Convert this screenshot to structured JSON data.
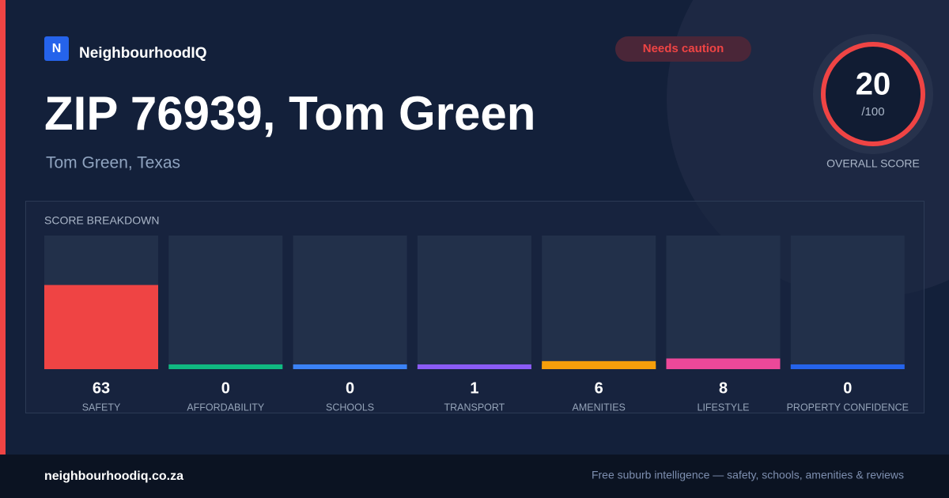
{
  "brand": "NeighbourhoodIQ",
  "logo": "N",
  "badge": "Needs caution",
  "title": "ZIP 76939, Tom Green",
  "subtitle": "Tom Green, Texas",
  "score": {
    "value": 20,
    "max": "/100",
    "label": "OVERALL SCORE"
  },
  "chart_data": {
    "type": "bar",
    "title": "SCORE BREAKDOWN",
    "categories": [
      "SAFETY",
      "AFFORDABILITY",
      "SCHOOLS",
      "TRANSPORT",
      "AMENITIES",
      "LIFESTYLE",
      "PROPERTY CONFIDENCE"
    ],
    "values": [
      63,
      0,
      0,
      1,
      6,
      8,
      0
    ],
    "colors": [
      "#ef4444",
      "#10b981",
      "#3b82f6",
      "#8b5cf6",
      "#f59e0b",
      "#ec4899",
      "#2563eb"
    ],
    "ylim": [
      0,
      100
    ]
  },
  "footer": {
    "site": "neighbourhoodiq.co.za",
    "tagline": "Free suburb intelligence — safety, schools, amenities & reviews"
  }
}
